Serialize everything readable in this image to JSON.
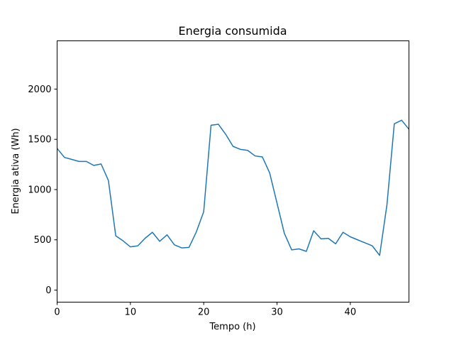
{
  "chart_data": {
    "type": "line",
    "title": "Energia consumida",
    "xlabel": "Tempo (h)",
    "ylabel": "Energia ativa (Wh)",
    "xlim": [
      0,
      48
    ],
    "ylim": [
      -120,
      2480
    ],
    "xticks": [
      0,
      10,
      20,
      30,
      40
    ],
    "yticks": [
      0,
      500,
      1000,
      1500,
      2000
    ],
    "grid": false,
    "series": [
      {
        "color": "#1f77b4",
        "x": [
          0,
          1,
          2,
          3,
          4,
          5,
          6,
          7,
          8,
          9,
          10,
          11,
          12,
          13,
          14,
          15,
          16,
          17,
          18,
          19,
          20,
          21,
          22,
          23,
          24,
          25,
          26,
          27,
          28,
          29,
          30,
          31,
          32,
          33,
          34,
          35,
          36,
          37,
          38,
          39,
          40,
          41,
          42,
          43,
          44,
          45,
          46,
          47,
          48
        ],
        "y": [
          1410,
          1320,
          1300,
          1280,
          1280,
          1240,
          1255,
          1090,
          540,
          490,
          430,
          440,
          515,
          575,
          485,
          550,
          450,
          420,
          425,
          580,
          780,
          1640,
          1650,
          1550,
          1430,
          1400,
          1390,
          1335,
          1325,
          1165,
          865,
          565,
          400,
          410,
          385,
          590,
          510,
          515,
          460,
          575,
          530,
          500,
          470,
          440,
          345,
          850,
          1655,
          1690,
          1600
        ]
      }
    ]
  }
}
